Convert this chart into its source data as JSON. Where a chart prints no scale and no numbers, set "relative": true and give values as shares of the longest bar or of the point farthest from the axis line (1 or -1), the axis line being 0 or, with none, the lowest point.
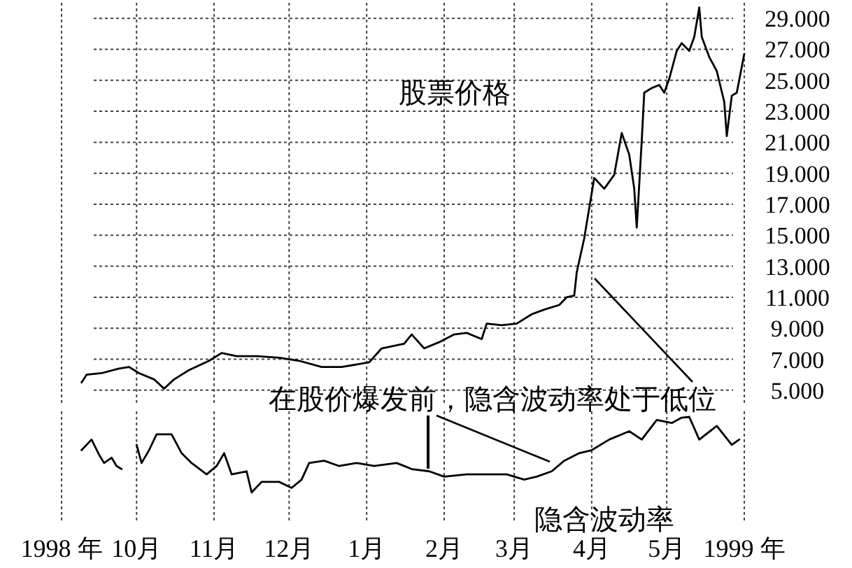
{
  "chart_data": [
    {
      "type": "line",
      "xlim": [
        "1998-09-01",
        "1999-06-01"
      ],
      "ylim": [
        4,
        30
      ],
      "tick_labels": "y",
      "grid": true,
      "yticks": [
        {
          "value": 5,
          "label": "5.000"
        },
        {
          "value": 7,
          "label": "7.000"
        },
        {
          "value": 9,
          "label": "9.000"
        },
        {
          "value": 11,
          "label": "11.000"
        },
        {
          "value": 13,
          "label": "13.000"
        },
        {
          "value": 15,
          "label": "15.000"
        },
        {
          "value": 17,
          "label": "17.000"
        },
        {
          "value": 19,
          "label": "19.000"
        },
        {
          "value": 21,
          "label": "21.000"
        },
        {
          "value": 23,
          "label": "23.000"
        },
        {
          "value": 25,
          "label": "25.000"
        },
        {
          "value": 27,
          "label": "27.000"
        },
        {
          "value": 29,
          "label": "29.000"
        }
      ],
      "xticks": [
        "1998-09-01",
        "1998-10-01",
        "1998-11-01",
        "1998-12-01",
        "1999-01-01",
        "1999-02-01",
        "1999-03-01",
        "1999-04-01",
        "1999-05-01",
        "1999-06-01"
      ],
      "series": [
        {
          "name": "股票价格",
          "color": "#000000",
          "x": [
            "1998-09-09",
            "1998-09-11",
            "1998-09-17",
            "1998-09-24",
            "1998-09-28",
            "1998-10-02",
            "1998-10-08",
            "1998-10-12",
            "1998-10-16",
            "1998-10-22",
            "1998-10-30",
            "1998-11-04",
            "1998-11-10",
            "1998-11-18",
            "1998-11-27",
            "1998-12-05",
            "1998-12-14",
            "1998-12-22",
            "1999-01-02",
            "1999-01-07",
            "1999-01-16",
            "1999-01-19",
            "1999-01-24",
            "1999-01-30",
            "1999-02-05",
            "1999-02-10",
            "1999-02-16",
            "1999-02-18",
            "1999-02-24",
            "1999-03-02",
            "1999-03-08",
            "1999-03-13",
            "1999-03-19",
            "1999-03-22",
            "1999-03-25",
            "1999-03-26",
            "1999-03-29",
            "1999-04-02",
            "1999-04-06",
            "1999-04-10",
            "1999-04-12",
            "1999-04-13",
            "1999-04-16",
            "1999-04-18",
            "1999-04-19",
            "1999-04-21",
            "1999-04-22",
            "1999-04-25",
            "1999-04-28",
            "1999-04-30",
            "1999-05-02",
            "1999-05-05",
            "1999-05-07",
            "1999-05-10",
            "1999-05-12",
            "1999-05-14",
            "1999-05-15",
            "1999-05-18",
            "1999-05-21",
            "1999-05-24",
            "1999-05-25",
            "1999-05-27",
            "1999-05-29",
            "1999-06-01"
          ],
          "values": [
            5.5,
            6.0,
            6.1,
            6.4,
            6.5,
            6.1,
            5.7,
            5.1,
            5.7,
            6.3,
            6.9,
            7.4,
            7.2,
            7.2,
            7.1,
            6.9,
            6.5,
            6.5,
            6.8,
            7.7,
            8.0,
            8.6,
            7.7,
            8.1,
            8.6,
            8.7,
            8.3,
            9.3,
            9.2,
            9.3,
            9.9,
            10.2,
            10.5,
            11.0,
            11.1,
            12.6,
            14.8,
            18.7,
            18.0,
            18.9,
            20.7,
            21.6,
            20.2,
            18.0,
            15.5,
            21.1,
            24.2,
            24.5,
            24.7,
            24.2,
            25.1,
            26.9,
            27.4,
            26.9,
            27.8,
            29.7,
            27.8,
            26.5,
            25.6,
            23.6,
            21.4,
            24.0,
            24.2,
            26.7
          ]
        }
      ]
    },
    {
      "type": "line",
      "relative": true,
      "xlim": [
        "1998-09-01",
        "1999-06-01"
      ],
      "tick_labels": "x",
      "grid": "x",
      "xticks": [
        {
          "value": "1998-09-01",
          "label": "1998 年"
        },
        {
          "value": "1998-10-01",
          "label": "10月"
        },
        {
          "value": "1998-11-01",
          "label": "11月"
        },
        {
          "value": "1998-12-01",
          "label": "12月"
        },
        {
          "value": "1999-01-01",
          "label": "1月"
        },
        {
          "value": "1999-02-01",
          "label": "2月"
        },
        {
          "value": "1999-03-01",
          "label": "3月"
        },
        {
          "value": "1999-04-01",
          "label": "4月"
        },
        {
          "value": "1999-05-01",
          "label": "5月"
        },
        {
          "value": "1999-06-01",
          "label": "1999 年"
        }
      ],
      "annotations": [
        "在股价爆发前，隐含波动率处于低位"
      ],
      "series": [
        {
          "name": "隐含波动率",
          "color": "#000000",
          "x": [
            "1998-09-09",
            "1998-09-13",
            "1998-09-16",
            "1998-09-18",
            "1998-09-21",
            "1998-09-23",
            "1998-09-25",
            "1998-09-28",
            "1998-10-01",
            "1998-10-03",
            "1998-10-06",
            "1998-10-09",
            "1998-10-15",
            "1998-10-19",
            "1998-10-23",
            "1998-10-29",
            "1998-11-02",
            "1998-11-05",
            "1998-11-08",
            "1998-11-14",
            "1998-11-16",
            "1998-11-20",
            "1998-11-27",
            "1998-12-02",
            "1998-12-06",
            "1998-12-09",
            "1998-12-15",
            "1998-12-21",
            "1998-12-28",
            "1999-01-04",
            "1999-01-13",
            "1999-01-19",
            "1999-01-26",
            "1999-02-01",
            "1999-02-10",
            "1999-02-18",
            "1999-02-26",
            "1999-03-05",
            "1999-03-10",
            "1999-03-16",
            "1999-03-21",
            "1999-03-27",
            "1999-04-01",
            "1999-04-08",
            "1999-04-16",
            "1999-04-21",
            "1999-04-27",
            "1999-05-03",
            "1999-05-07",
            "1999-05-10",
            "1999-05-14",
            "1999-05-21",
            "1999-05-27",
            "1999-05-30"
          ],
          "values": [
            0.56,
            0.7,
            0.5,
            0.39,
            0.46,
            0.35,
            0.31,
            null,
            0.63,
            0.39,
            0.56,
            0.77,
            0.77,
            0.52,
            0.39,
            0.24,
            0.35,
            0.52,
            0.24,
            0.28,
            0,
            0.14,
            0.14,
            0.06,
            0.17,
            0.39,
            0.42,
            0.35,
            0.39,
            0.35,
            0.39,
            0.31,
            0.28,
            0.21,
            0.24,
            0.24,
            0.24,
            0.17,
            0.21,
            0.28,
            0.42,
            0.52,
            0.56,
            0.7,
            0.81,
            0.7,
            0.96,
            0.92,
            0.99,
            1,
            0.7,
            0.88,
            0.63,
            0.7
          ]
        }
      ]
    }
  ]
}
